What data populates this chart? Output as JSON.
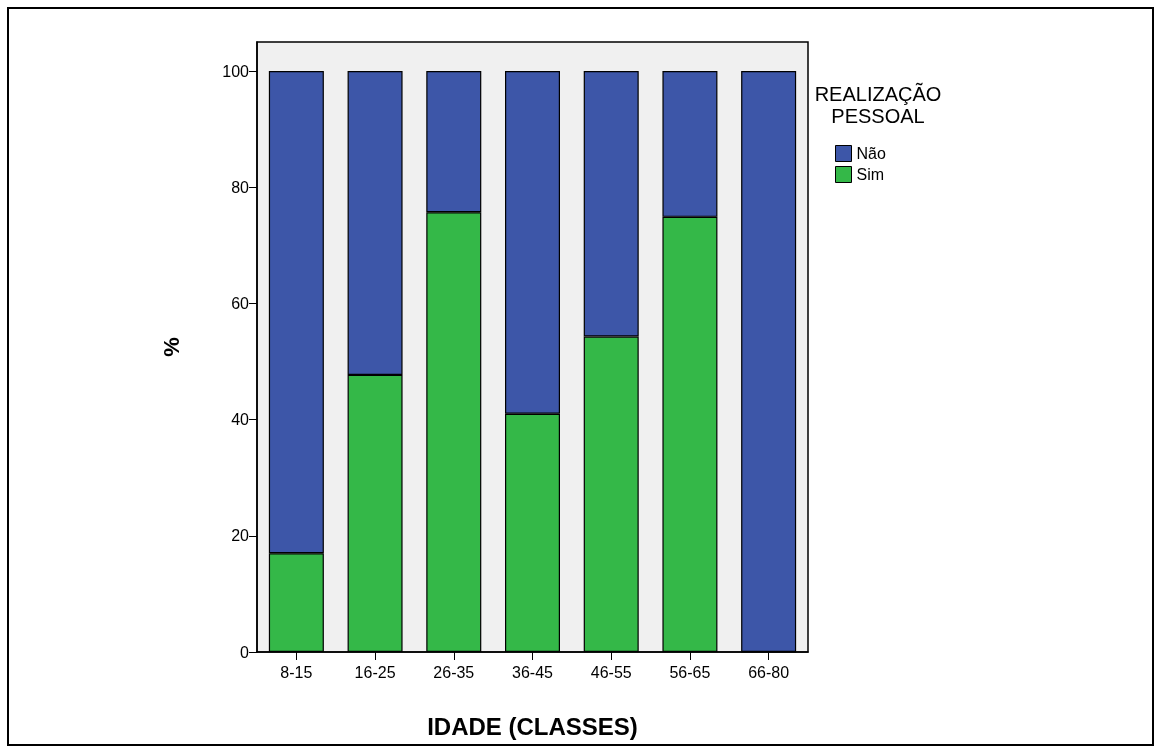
{
  "chart_data": {
    "type": "bar",
    "stacked": true,
    "xlabel": "IDADE (CLASSES)",
    "ylabel": "%",
    "legend_title": "REALIZAÇÃO\nPESSOAL",
    "categories": [
      "8-15",
      "16-25",
      "26-35",
      "36-45",
      "46-55",
      "56-65",
      "66-80"
    ],
    "series": [
      {
        "name": "Sim",
        "color": "#34b848",
        "values": [
          17,
          47.7,
          75.7,
          41,
          54.3,
          74.9,
          0
        ]
      },
      {
        "name": "Não",
        "color": "#3d56a8",
        "values": [
          83,
          52.3,
          24.3,
          59,
          45.7,
          25.1,
          100
        ]
      }
    ],
    "ylim": [
      0,
      105
    ],
    "yticks": [
      0,
      20,
      40,
      60,
      80,
      100
    ],
    "grid": false,
    "legend": "top right"
  }
}
